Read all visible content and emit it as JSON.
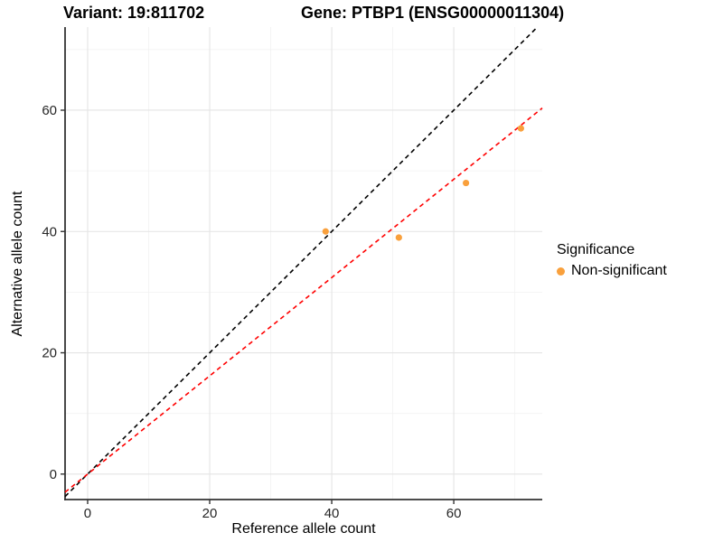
{
  "chart_data": {
    "type": "scatter",
    "title_left": "Variant: 19:811702",
    "title_right": "Gene: PTBP1 (ENSG00000011304)",
    "xlabel": "Reference allele count",
    "ylabel": "Alternative allele count",
    "xlim": [
      -3.7,
      74.5
    ],
    "ylim": [
      -4.2,
      73.7
    ],
    "xticks": [
      0,
      20,
      40,
      60
    ],
    "yticks": [
      0,
      20,
      40,
      60
    ],
    "xticks_minor": [
      10,
      30,
      50,
      70
    ],
    "yticks_minor": [
      10,
      30,
      50,
      70
    ],
    "grid": true,
    "series": [
      {
        "name": "Non-significant",
        "color": "#F9A03C",
        "points": [
          [
            39,
            40
          ],
          [
            51,
            39
          ],
          [
            62,
            48
          ],
          [
            71,
            57
          ]
        ]
      }
    ],
    "ref_lines": [
      {
        "name": "identity-line",
        "slope": 1.0,
        "intercept": 0,
        "color": "#000000",
        "style": "dashed"
      },
      {
        "name": "fit-line",
        "slope": 0.81,
        "intercept": 0,
        "color": "#FF0000",
        "style": "dashed"
      }
    ],
    "legend": {
      "title": "Significance",
      "position": "right",
      "items": [
        {
          "label": "Non-significant",
          "color": "#F9A03C"
        }
      ]
    }
  },
  "colors": {
    "background": "#FFFFFF",
    "grid_major": "#E4E4E4",
    "grid_minor": "#F2F2F2",
    "axis": "#333333",
    "tick_text": "#262626",
    "title_text": "#000000"
  }
}
